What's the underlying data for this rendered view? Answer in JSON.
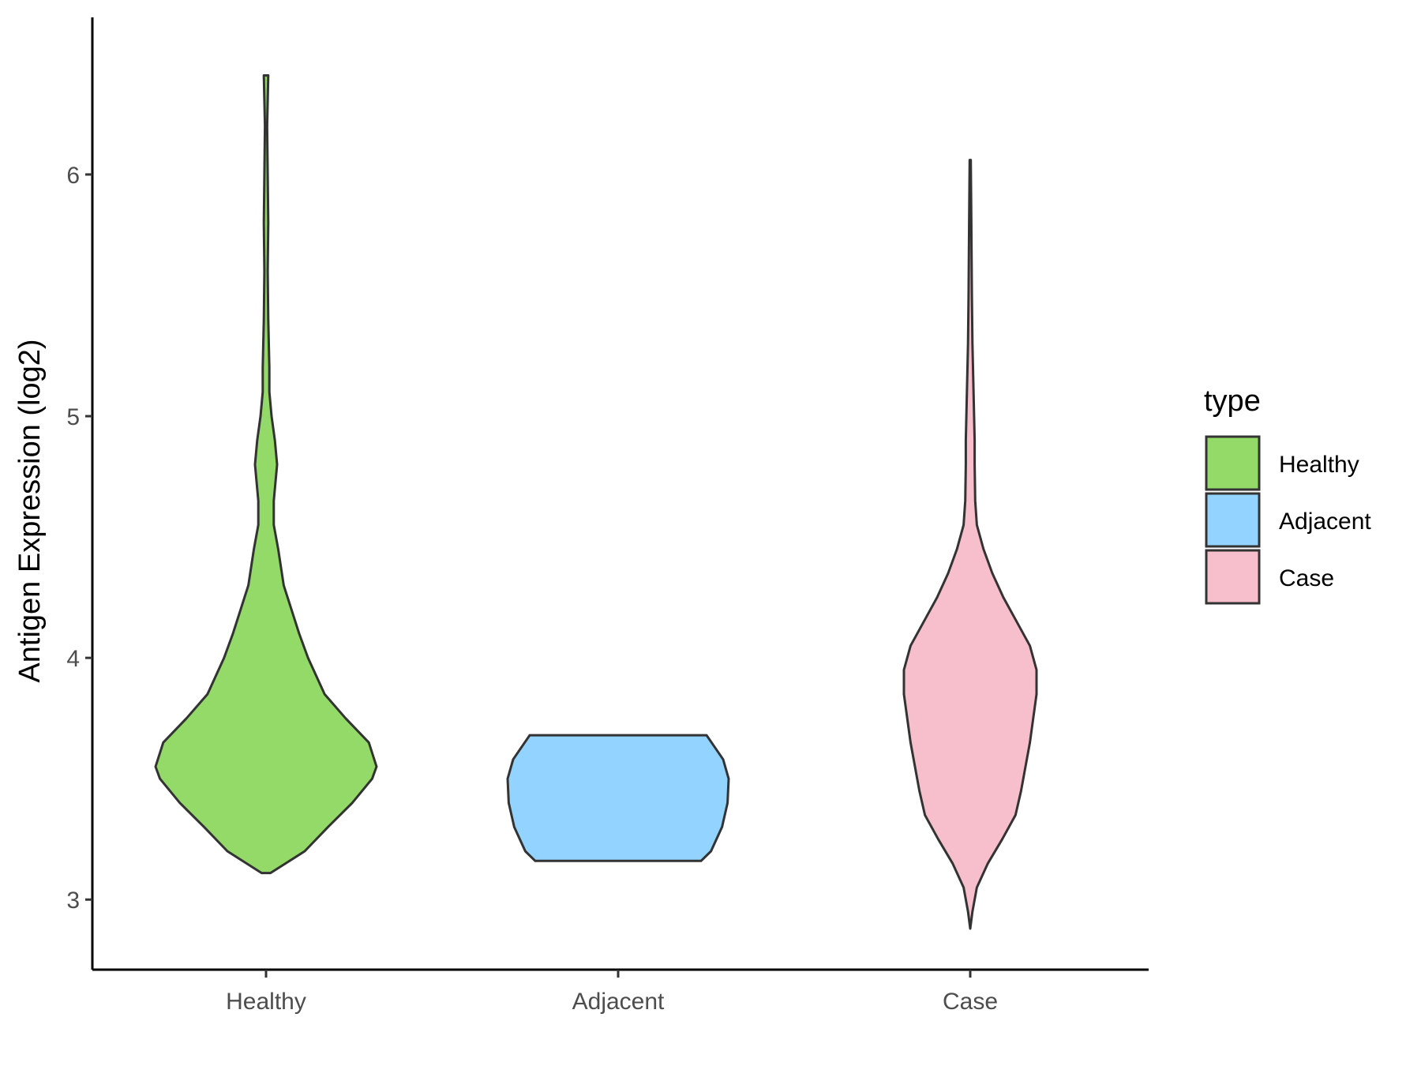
{
  "chart_data": {
    "type": "violin",
    "title": "",
    "xlabel": "",
    "ylabel": "Antigen Expression (log2)",
    "ylim": [
      2.71,
      6.65
    ],
    "yticks": [
      3,
      4,
      5,
      6
    ],
    "categories": [
      "Healthy",
      "Adjacent",
      "Case"
    ],
    "legend": {
      "title": "type",
      "position": "right",
      "entries": [
        "Healthy",
        "Adjacent",
        "Case"
      ]
    },
    "grid": false,
    "series": [
      {
        "name": "Healthy",
        "color": "#93DA69",
        "min": 3.11,
        "max": 6.41,
        "profile": [
          [
            3.11,
            0.04
          ],
          [
            3.2,
            0.35
          ],
          [
            3.3,
            0.56
          ],
          [
            3.4,
            0.78
          ],
          [
            3.5,
            0.96
          ],
          [
            3.55,
            1.0
          ],
          [
            3.65,
            0.93
          ],
          [
            3.75,
            0.72
          ],
          [
            3.85,
            0.53
          ],
          [
            4.0,
            0.38
          ],
          [
            4.1,
            0.3
          ],
          [
            4.2,
            0.23
          ],
          [
            4.3,
            0.16
          ],
          [
            4.45,
            0.11
          ],
          [
            4.55,
            0.07
          ],
          [
            4.65,
            0.07
          ],
          [
            4.8,
            0.1
          ],
          [
            4.9,
            0.08
          ],
          [
            5.0,
            0.05
          ],
          [
            5.1,
            0.03
          ],
          [
            5.2,
            0.03
          ],
          [
            5.4,
            0.02
          ],
          [
            5.6,
            0.015
          ],
          [
            5.8,
            0.02
          ],
          [
            6.0,
            0.015
          ],
          [
            6.2,
            0.01
          ],
          [
            6.41,
            0.02
          ]
        ]
      },
      {
        "name": "Adjacent",
        "color": "#92D3FF",
        "min": 3.16,
        "max": 3.68,
        "profile": [
          [
            3.16,
            0.75
          ],
          [
            3.2,
            0.84
          ],
          [
            3.3,
            0.94
          ],
          [
            3.4,
            0.99
          ],
          [
            3.5,
            1.0
          ],
          [
            3.58,
            0.95
          ],
          [
            3.64,
            0.86
          ],
          [
            3.68,
            0.8
          ]
        ]
      },
      {
        "name": "Case",
        "color": "#F7BFCB",
        "min": 2.88,
        "max": 6.06,
        "profile": [
          [
            2.88,
            0.0
          ],
          [
            2.95,
            0.02
          ],
          [
            3.05,
            0.06
          ],
          [
            3.15,
            0.16
          ],
          [
            3.25,
            0.29
          ],
          [
            3.35,
            0.41
          ],
          [
            3.45,
            0.46
          ],
          [
            3.55,
            0.5
          ],
          [
            3.65,
            0.54
          ],
          [
            3.75,
            0.57
          ],
          [
            3.85,
            0.6
          ],
          [
            3.95,
            0.6
          ],
          [
            4.05,
            0.54
          ],
          [
            4.15,
            0.42
          ],
          [
            4.25,
            0.3
          ],
          [
            4.35,
            0.2
          ],
          [
            4.45,
            0.12
          ],
          [
            4.55,
            0.06
          ],
          [
            4.65,
            0.045
          ],
          [
            4.8,
            0.04
          ],
          [
            4.9,
            0.04
          ],
          [
            5.0,
            0.035
          ],
          [
            5.1,
            0.03
          ],
          [
            5.3,
            0.02
          ],
          [
            5.5,
            0.015
          ],
          [
            5.8,
            0.01
          ],
          [
            6.06,
            0.005
          ]
        ]
      }
    ]
  }
}
